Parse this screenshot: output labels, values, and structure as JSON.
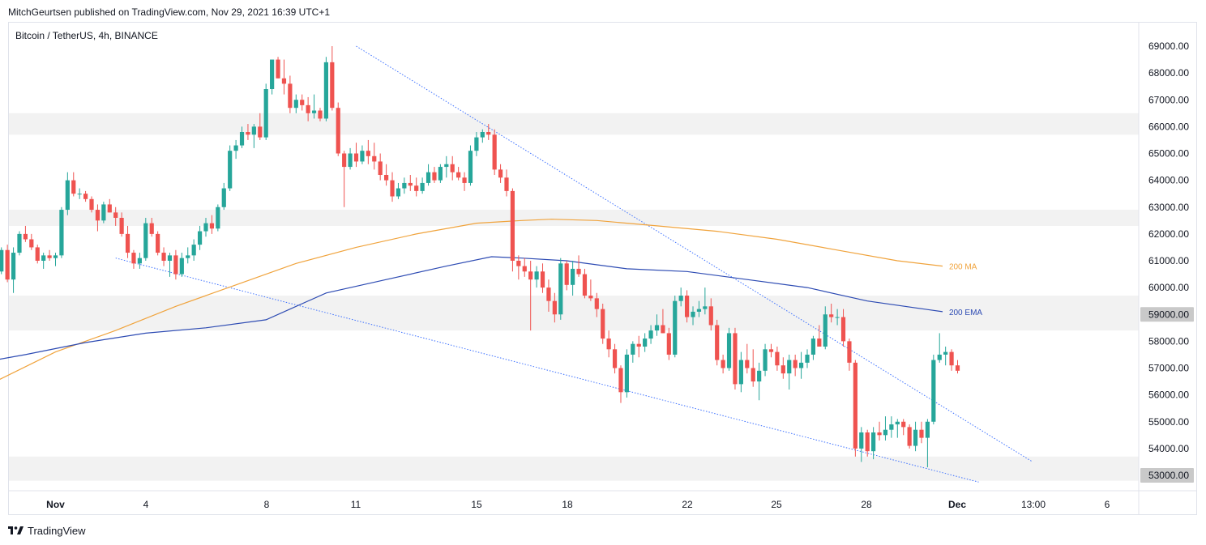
{
  "header": {
    "publisher": "MitchGeurtsen published on TradingView.com, Nov 29, 2021 16:39 UTC+1"
  },
  "footer": {
    "brand": "TradingView"
  },
  "chart_data": {
    "type": "candlestick",
    "title": "Bitcoin / TetherUS, 4h, BINANCE",
    "x_ticks": [
      "Nov",
      "4",
      "8",
      "11",
      "15",
      "18",
      "22",
      "25",
      "28",
      "Dec",
      "13:00",
      "6"
    ],
    "y_ticks": [
      53000,
      54000,
      55000,
      56000,
      57000,
      58000,
      59000,
      60000,
      61000,
      62000,
      63000,
      64000,
      65000,
      66000,
      67000,
      68000,
      69000
    ],
    "y_tick_labels": [
      "53000.00",
      "54000.00",
      "55000.00",
      "56000.00",
      "57000.00",
      "58000.00",
      "59000.00",
      "60000.00",
      "61000.00",
      "62000.00",
      "63000.00",
      "64000.00",
      "65000.00",
      "66000.00",
      "67000.00",
      "68000.00",
      "69000.00"
    ],
    "highlighted_prices": [
      {
        "value": 59000,
        "label": "59000.00"
      },
      {
        "value": 53000,
        "label": "53000.00"
      }
    ],
    "price_zones": [
      [
        65700,
        66500
      ],
      [
        62300,
        62900
      ],
      [
        58400,
        59700
      ],
      [
        52800,
        53700
      ]
    ],
    "trendlines": [
      {
        "from": [
          10.0,
          69000
        ],
        "to": [
          32.5,
          53500
        ]
      },
      {
        "from": [
          2.0,
          61100
        ],
        "to": [
          30.7,
          52750
        ]
      }
    ],
    "series": [
      {
        "name": "200 MA",
        "color": "#f0a33c",
        "points": [
          [
            -3,
            55800
          ],
          [
            -2,
            56500
          ],
          [
            0,
            57600
          ],
          [
            2,
            58400
          ],
          [
            4,
            59300
          ],
          [
            6,
            60100
          ],
          [
            8,
            60900
          ],
          [
            10,
            61500
          ],
          [
            12,
            62000
          ],
          [
            14,
            62400
          ],
          [
            15.5,
            62500
          ],
          [
            16.5,
            62550
          ],
          [
            18,
            62500
          ],
          [
            20,
            62300
          ],
          [
            22,
            62100
          ],
          [
            24,
            61800
          ],
          [
            26,
            61400
          ],
          [
            28,
            61000
          ],
          [
            29.5,
            60800
          ]
        ]
      },
      {
        "name": "200 EMA",
        "color": "#2d4bb3",
        "points": [
          [
            -3,
            57100
          ],
          [
            -1,
            57500
          ],
          [
            1,
            57950
          ],
          [
            3,
            58300
          ],
          [
            5,
            58500
          ],
          [
            7,
            58800
          ],
          [
            9,
            59800
          ],
          [
            11,
            60300
          ],
          [
            13,
            60800
          ],
          [
            14.5,
            61150
          ],
          [
            15.5,
            61100
          ],
          [
            17,
            61000
          ],
          [
            19,
            60700
          ],
          [
            21,
            60600
          ],
          [
            23,
            60300
          ],
          [
            25,
            60000
          ],
          [
            27,
            59500
          ],
          [
            29.5,
            59100
          ]
        ]
      }
    ],
    "candles": [
      [
        -3,
        61500,
        61900,
        61400,
        61800
      ],
      [
        -2.8,
        61800,
        62200,
        61600,
        61900
      ],
      [
        -2.6,
        61900,
        62000,
        61500,
        61600
      ],
      [
        -2.4,
        61600,
        61700,
        60800,
        60900
      ],
      [
        -2.2,
        60900,
        61100,
        60100,
        60300
      ],
      [
        -2,
        60300,
        60700,
        60100,
        60600
      ],
      [
        -1.8,
        60600,
        61500,
        60500,
        61400
      ],
      [
        -1.6,
        61400,
        61600,
        60200,
        60300
      ],
      [
        -1.4,
        60300,
        61500,
        59800,
        61300
      ],
      [
        -1.2,
        61300,
        62100,
        61200,
        62000
      ],
      [
        -1,
        62000,
        62300,
        61700,
        61800
      ],
      [
        -0.8,
        61800,
        62000,
        61400,
        61500
      ],
      [
        -0.6,
        61500,
        61600,
        60900,
        61000
      ],
      [
        -0.4,
        61000,
        61300,
        60700,
        61200
      ],
      [
        -0.2,
        61200,
        61400,
        61000,
        61100
      ],
      [
        0,
        61100,
        61300,
        60800,
        61200
      ],
      [
        0.2,
        61200,
        63000,
        61100,
        62900
      ],
      [
        0.4,
        62900,
        64300,
        62700,
        64000
      ],
      [
        0.6,
        64000,
        64300,
        63400,
        63500
      ],
      [
        0.8,
        63500,
        63700,
        63300,
        63500
      ],
      [
        1,
        63500,
        63600,
        63200,
        63300
      ],
      [
        1.2,
        63300,
        63400,
        62800,
        62900
      ],
      [
        1.4,
        62900,
        63100,
        62100,
        62500
      ],
      [
        1.6,
        62500,
        63200,
        62400,
        63100
      ],
      [
        1.8,
        63100,
        63300,
        62800,
        62800
      ],
      [
        2,
        62800,
        63000,
        62300,
        62600
      ],
      [
        2.2,
        62600,
        62800,
        61900,
        62000
      ],
      [
        2.4,
        62000,
        62300,
        61100,
        61300
      ],
      [
        2.6,
        61300,
        61400,
        60700,
        60900
      ],
      [
        2.8,
        60900,
        61300,
        60700,
        61100
      ],
      [
        3,
        61100,
        62600,
        61000,
        62400
      ],
      [
        3.2,
        62400,
        62600,
        61900,
        62000
      ],
      [
        3.4,
        62000,
        62100,
        61200,
        61300
      ],
      [
        3.6,
        61300,
        61500,
        60800,
        61000
      ],
      [
        3.8,
        61000,
        61300,
        60400,
        61200
      ],
      [
        4,
        61200,
        61400,
        60300,
        60500
      ],
      [
        4.2,
        60500,
        61300,
        60400,
        61100
      ],
      [
        4.4,
        61100,
        61500,
        60900,
        61200
      ],
      [
        4.6,
        61200,
        61800,
        61000,
        61600
      ],
      [
        4.8,
        61600,
        62300,
        61400,
        62100
      ],
      [
        5,
        62100,
        62600,
        61900,
        62400
      ],
      [
        5.2,
        62400,
        62700,
        62000,
        62200
      ],
      [
        5.4,
        62200,
        63100,
        62100,
        63000
      ],
      [
        5.6,
        63000,
        63900,
        62900,
        63700
      ],
      [
        5.8,
        63700,
        65300,
        63600,
        65100
      ],
      [
        6,
        65100,
        65500,
        64800,
        65300
      ],
      [
        6.2,
        65300,
        66000,
        65200,
        65800
      ],
      [
        6.4,
        65800,
        66100,
        65500,
        65700
      ],
      [
        6.6,
        65700,
        66100,
        65200,
        66000
      ],
      [
        6.8,
        66000,
        66500,
        65500,
        65600
      ],
      [
        7,
        65600,
        67600,
        65500,
        67400
      ],
      [
        7.2,
        67400,
        68500,
        67200,
        68500
      ],
      [
        7.4,
        68500,
        68600,
        67800,
        67800
      ],
      [
        7.6,
        67800,
        68500,
        67200,
        67600
      ],
      [
        7.8,
        67600,
        67900,
        66500,
        66700
      ],
      [
        8,
        66700,
        67200,
        66500,
        67000
      ],
      [
        8.2,
        67000,
        67200,
        66600,
        66800
      ],
      [
        8.4,
        66800,
        67100,
        66200,
        66500
      ],
      [
        8.6,
        66500,
        67200,
        66300,
        66600
      ],
      [
        8.8,
        66600,
        66700,
        66200,
        66300
      ],
      [
        9,
        66300,
        68600,
        66200,
        68400
      ],
      [
        9.2,
        68400,
        69000,
        66600,
        66700
      ],
      [
        9.4,
        66700,
        66900,
        64900,
        65000
      ],
      [
        9.6,
        65000,
        65100,
        63000,
        64500
      ],
      [
        9.8,
        64500,
        65200,
        64400,
        65000
      ],
      [
        10,
        65000,
        65400,
        64500,
        64700
      ],
      [
        10.2,
        64700,
        65300,
        64600,
        65100
      ],
      [
        10.4,
        65100,
        65500,
        64600,
        64900
      ],
      [
        10.6,
        64900,
        65400,
        64400,
        64700
      ],
      [
        10.8,
        64700,
        65000,
        64000,
        64200
      ],
      [
        11,
        64200,
        64600,
        63800,
        64000
      ],
      [
        11.2,
        64000,
        64300,
        63200,
        63400
      ],
      [
        11.4,
        63400,
        63900,
        63300,
        63700
      ],
      [
        11.6,
        63700,
        64100,
        63500,
        63900
      ],
      [
        11.8,
        63900,
        64200,
        63600,
        63800
      ],
      [
        12,
        63800,
        64100,
        63400,
        63600
      ],
      [
        12.2,
        63600,
        64100,
        63500,
        63900
      ],
      [
        12.4,
        63900,
        64600,
        63800,
        64300
      ],
      [
        12.6,
        64300,
        64500,
        63900,
        64000
      ],
      [
        12.8,
        64000,
        64600,
        63900,
        64500
      ],
      [
        13,
        64500,
        64900,
        64100,
        64600
      ],
      [
        13.2,
        64600,
        64900,
        64000,
        64300
      ],
      [
        13.4,
        64300,
        64500,
        64000,
        64100
      ],
      [
        13.6,
        64100,
        64300,
        63600,
        63900
      ],
      [
        13.8,
        63900,
        65300,
        63800,
        65100
      ],
      [
        14,
        65100,
        65800,
        64900,
        65600
      ],
      [
        14.2,
        65600,
        65900,
        65400,
        65800
      ],
      [
        14.4,
        65800,
        66100,
        65500,
        65700
      ],
      [
        14.6,
        65700,
        65900,
        64200,
        64400
      ],
      [
        14.8,
        64400,
        64600,
        63900,
        64100
      ],
      [
        15,
        64100,
        64400,
        63400,
        63600
      ],
      [
        15.2,
        63600,
        63700,
        60600,
        61000
      ],
      [
        15.4,
        61000,
        61200,
        60300,
        60800
      ],
      [
        15.6,
        60800,
        61100,
        60400,
        60600
      ],
      [
        15.8,
        60600,
        61000,
        58400,
        60300
      ],
      [
        16,
        60300,
        60800,
        60000,
        60600
      ],
      [
        16.2,
        60600,
        60900,
        59800,
        60000
      ],
      [
        16.4,
        60000,
        60300,
        59100,
        59500
      ],
      [
        16.6,
        59500,
        59800,
        58700,
        59000
      ],
      [
        16.8,
        59000,
        61100,
        58800,
        60900
      ],
      [
        17,
        60900,
        61000,
        59900,
        60100
      ],
      [
        17.2,
        60100,
        61000,
        59700,
        60700
      ],
      [
        17.4,
        60700,
        61200,
        60400,
        60500
      ],
      [
        17.6,
        60500,
        60700,
        59600,
        59700
      ],
      [
        17.8,
        59700,
        60300,
        59500,
        59600
      ],
      [
        18,
        59600,
        59800,
        58900,
        59200
      ],
      [
        18.2,
        59200,
        59400,
        57900,
        58100
      ],
      [
        18.4,
        58100,
        58400,
        57400,
        57700
      ],
      [
        18.6,
        57700,
        57900,
        56800,
        57000
      ],
      [
        18.8,
        57000,
        57100,
        55700,
        56100
      ],
      [
        19,
        56100,
        57700,
        55900,
        57500
      ],
      [
        19.2,
        57500,
        58000,
        57200,
        57900
      ],
      [
        19.4,
        57900,
        58200,
        57400,
        57800
      ],
      [
        19.6,
        57800,
        58300,
        57600,
        58100
      ],
      [
        19.8,
        58100,
        58600,
        57900,
        58400
      ],
      [
        20,
        58400,
        59000,
        58200,
        58600
      ],
      [
        20.2,
        58600,
        59200,
        58300,
        58300
      ],
      [
        20.4,
        58300,
        58500,
        57300,
        57500
      ],
      [
        20.6,
        57500,
        59700,
        57400,
        59500
      ],
      [
        20.8,
        59500,
        60000,
        59300,
        59700
      ],
      [
        21,
        59700,
        59900,
        58700,
        58900
      ],
      [
        21.2,
        58900,
        59300,
        58600,
        59100
      ],
      [
        21.4,
        59100,
        59500,
        58900,
        59200
      ],
      [
        21.6,
        59200,
        60000,
        59000,
        59300
      ],
      [
        21.8,
        59300,
        59600,
        58400,
        58600
      ],
      [
        22,
        58600,
        58800,
        57100,
        57300
      ],
      [
        22.2,
        57300,
        57500,
        56800,
        57000
      ],
      [
        22.4,
        57000,
        58500,
        56900,
        58300
      ],
      [
        22.6,
        58300,
        58500,
        56200,
        56400
      ],
      [
        22.8,
        56400,
        57600,
        56100,
        57300
      ],
      [
        23,
        57300,
        57900,
        56800,
        57000
      ],
      [
        23.2,
        57000,
        57700,
        56300,
        56500
      ],
      [
        23.4,
        56500,
        57200,
        55800,
        56900
      ],
      [
        23.6,
        56900,
        57900,
        56700,
        57700
      ],
      [
        23.8,
        57700,
        57900,
        57400,
        57600
      ],
      [
        24,
        57600,
        57800,
        56900,
        57100
      ],
      [
        24.2,
        57100,
        57400,
        56600,
        56800
      ],
      [
        24.4,
        56800,
        57500,
        56200,
        57300
      ],
      [
        24.6,
        57300,
        57500,
        56700,
        57000
      ],
      [
        24.8,
        57000,
        57600,
        56600,
        57200
      ],
      [
        25,
        57200,
        57700,
        57000,
        57500
      ],
      [
        25.2,
        57500,
        58200,
        57300,
        58100
      ],
      [
        25.4,
        58100,
        58600,
        57800,
        57800
      ],
      [
        25.6,
        57800,
        59300,
        57700,
        59000
      ],
      [
        25.8,
        59000,
        59400,
        58700,
        58900
      ],
      [
        26,
        58900,
        59200,
        58600,
        58900
      ],
      [
        26.2,
        58900,
        59200,
        57800,
        58000
      ],
      [
        26.4,
        58000,
        58100,
        56900,
        57200
      ],
      [
        26.6,
        57200,
        57300,
        53700,
        54000
      ],
      [
        26.8,
        54000,
        54800,
        53500,
        54600
      ],
      [
        27,
        54600,
        54700,
        53700,
        53900
      ],
      [
        27.2,
        53900,
        54800,
        53600,
        54600
      ],
      [
        27.4,
        54600,
        55000,
        54300,
        54500
      ],
      [
        27.6,
        54500,
        55200,
        54300,
        54700
      ],
      [
        27.8,
        54700,
        55200,
        54400,
        54900
      ],
      [
        28,
        54900,
        55100,
        54400,
        55000
      ],
      [
        28.2,
        55000,
        55100,
        54500,
        54800
      ],
      [
        28.4,
        54800,
        54900,
        54000,
        54100
      ],
      [
        28.6,
        54100,
        55000,
        53900,
        54700
      ],
      [
        28.8,
        54700,
        55000,
        54200,
        54400
      ],
      [
        29,
        54400,
        55100,
        53300,
        55000
      ],
      [
        29.2,
        55000,
        57500,
        54900,
        57300
      ],
      [
        29.4,
        57300,
        58300,
        57200,
        57500
      ],
      [
        29.6,
        57500,
        57800,
        57100,
        57600
      ],
      [
        29.8,
        57600,
        57700,
        56900,
        57100
      ],
      [
        30,
        57100,
        57300,
        56800,
        56900
      ]
    ]
  }
}
